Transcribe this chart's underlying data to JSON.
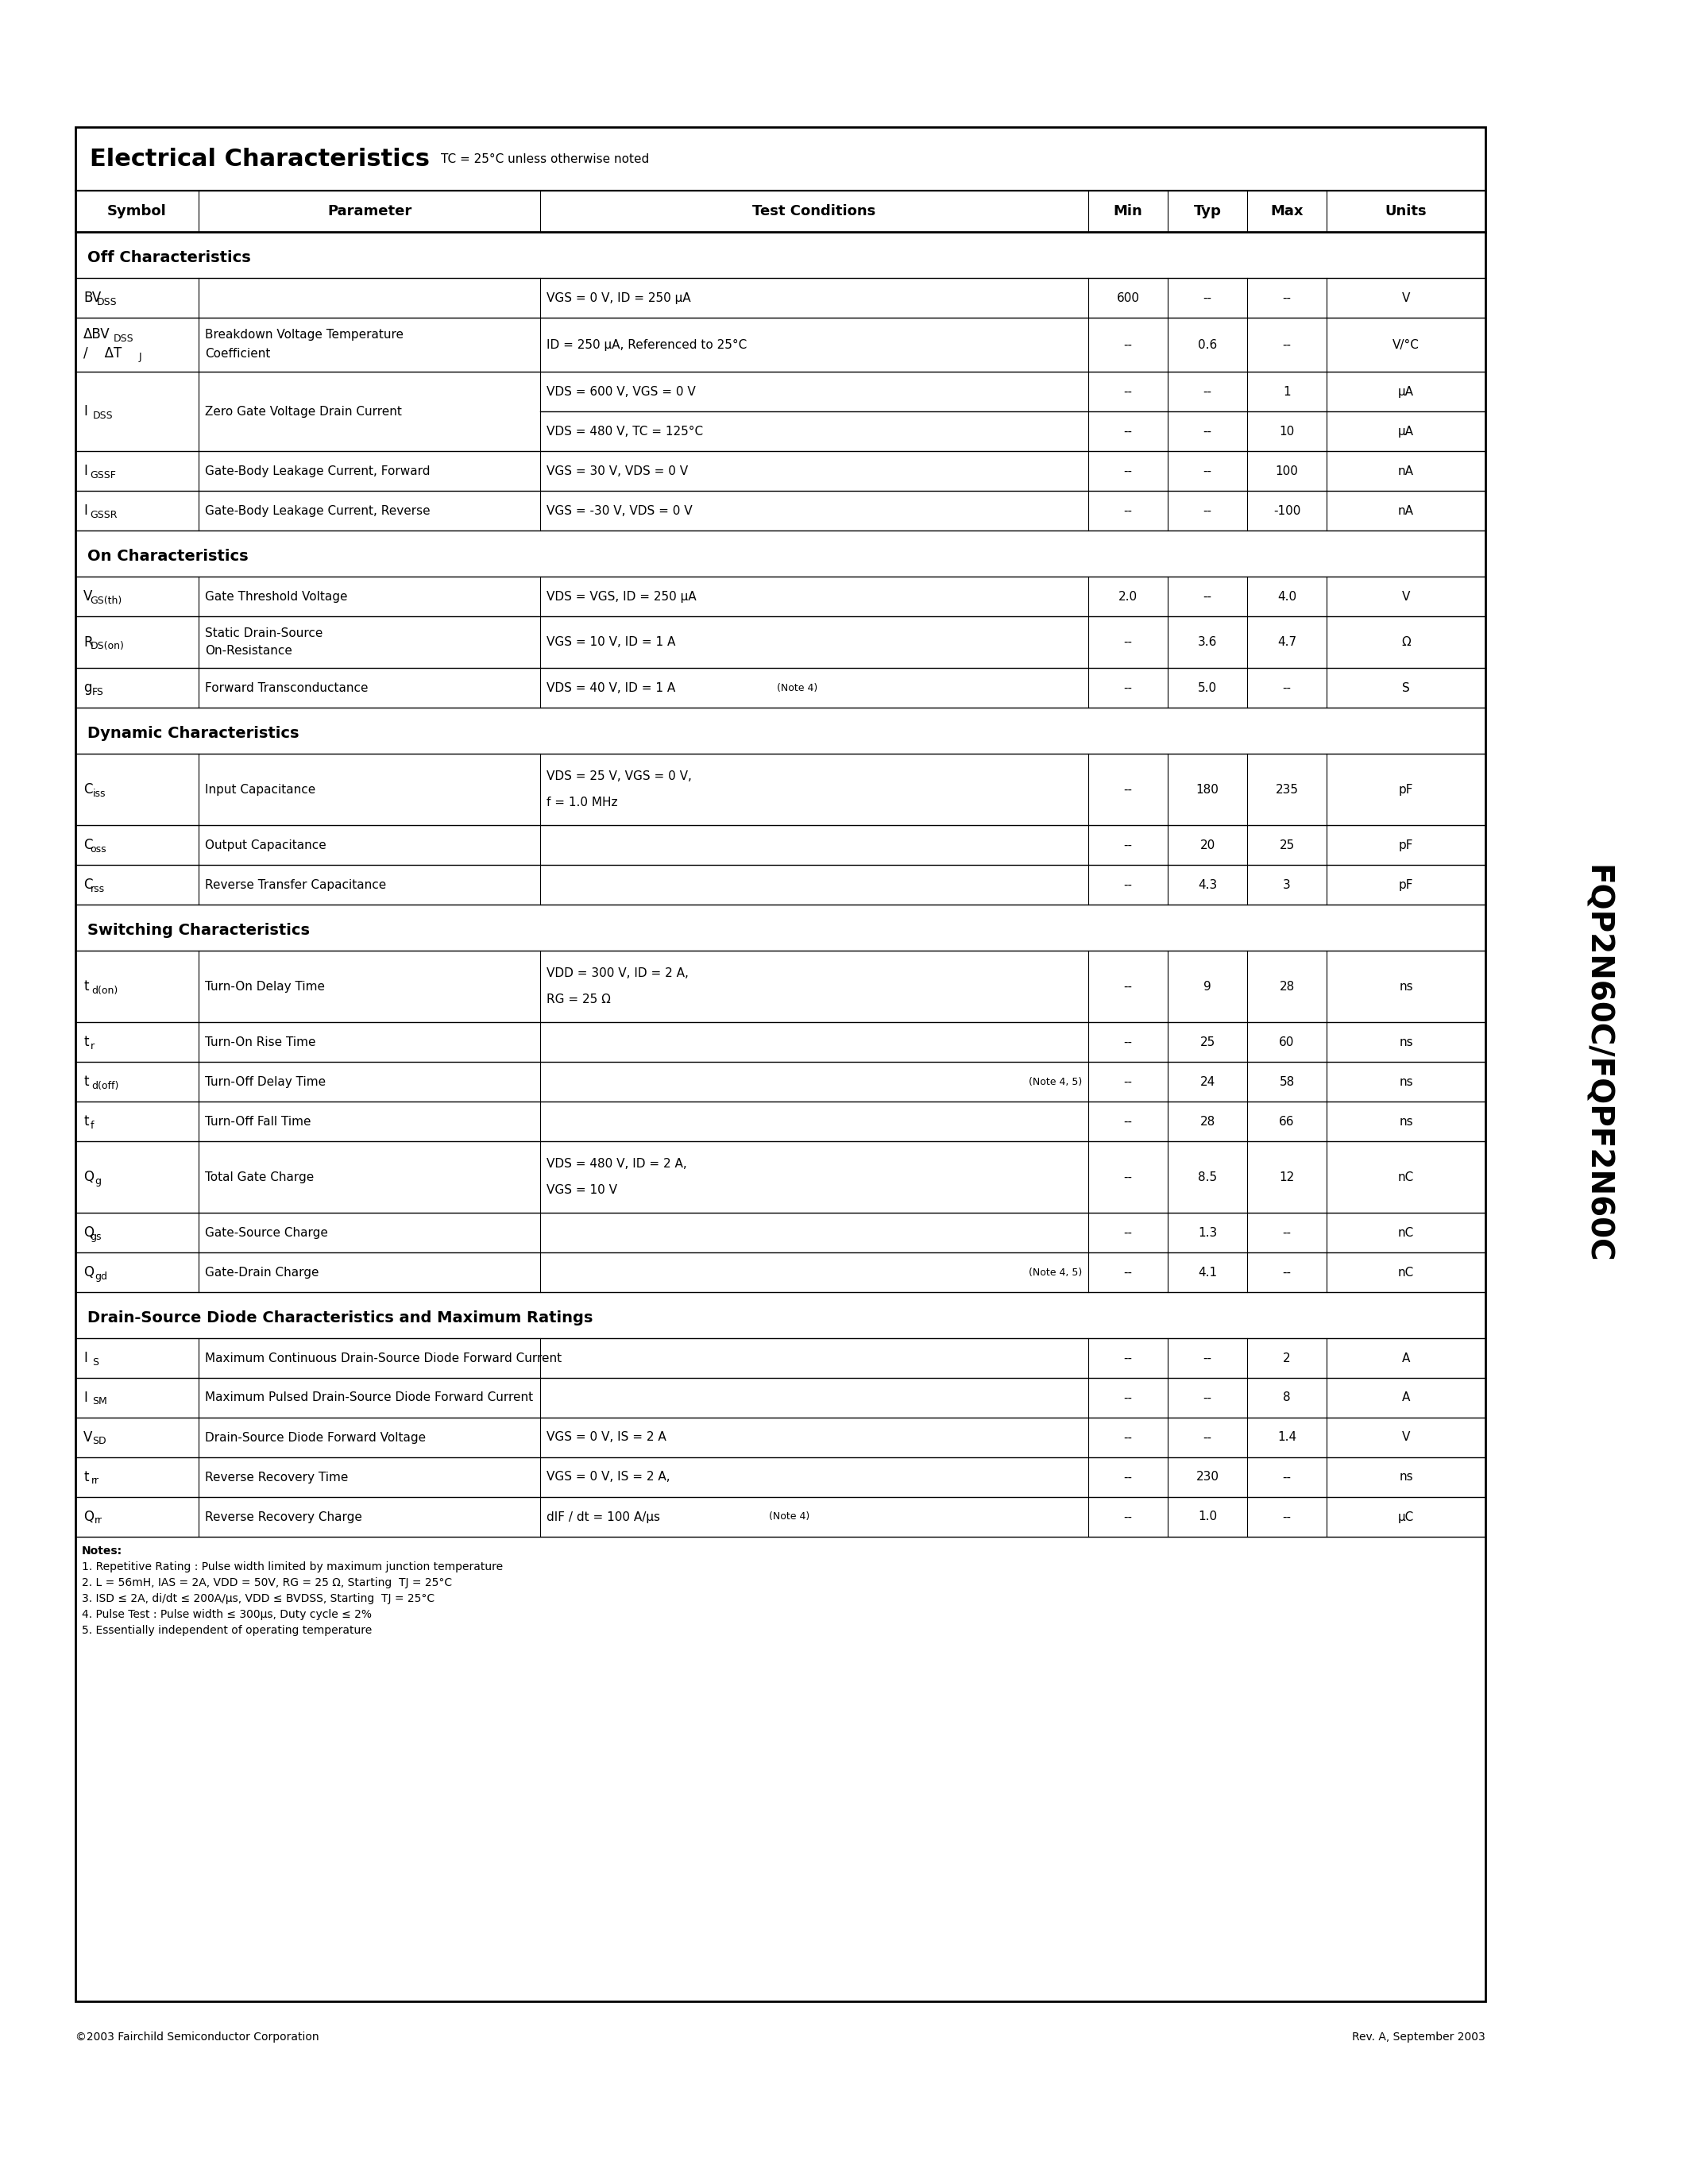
{
  "page_bg": "#ffffff",
  "title": "Electrical Characteristics",
  "title_note": "TC = 25°C unless otherwise noted",
  "side_label": "FQP2N60C/FQPF2N60C",
  "footer_left": "©2003 Fairchild Semiconductor Corporation",
  "footer_right": "Rev. A, September 2003"
}
